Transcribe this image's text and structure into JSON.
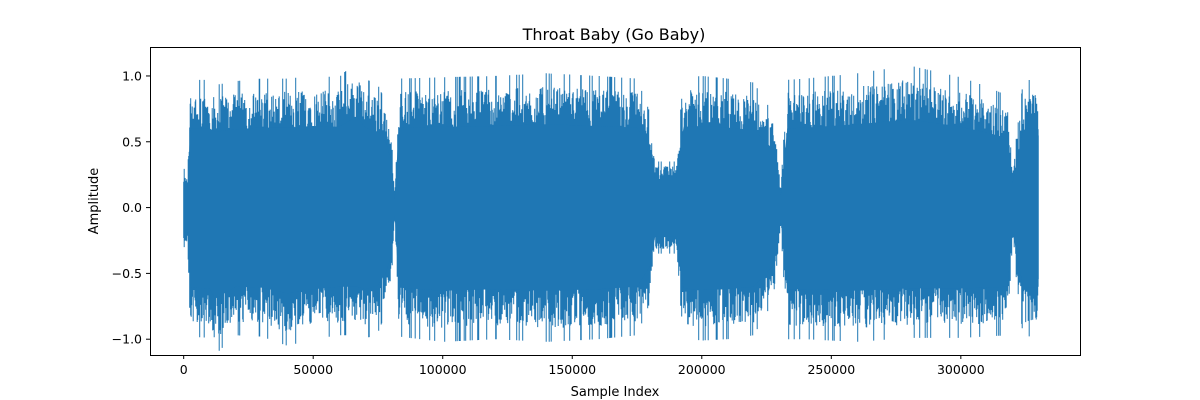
{
  "chart_data": {
    "type": "line",
    "title": "Throat Baby (Go Baby)",
    "xlabel": "Sample Index",
    "ylabel": "Amplitude",
    "xlim": [
      -13000,
      346000
    ],
    "ylim": [
      -1.12,
      1.22
    ],
    "x_ticks": [
      0,
      50000,
      100000,
      150000,
      200000,
      250000,
      300000
    ],
    "y_ticks": [
      -1.0,
      -0.5,
      0.0,
      0.5,
      1.0
    ],
    "x_tick_labels": [
      "0",
      "50000",
      "100000",
      "150000",
      "200000",
      "250000",
      "300000"
    ],
    "y_tick_labels": [
      "−1.0",
      "−0.5",
      "0.0",
      "0.5",
      "1.0"
    ],
    "grid": false,
    "series": [
      {
        "color": "#1f77b4",
        "envelope": {
          "x": [
            0,
            1500,
            2500,
            10000,
            12000,
            20000,
            30000,
            40000,
            50000,
            60000,
            67000,
            70000,
            75000,
            78000,
            80000,
            81500,
            83000,
            100000,
            120000,
            140000,
            160000,
            175000,
            180000,
            182000,
            190000,
            193000,
            200000,
            210000,
            220000,
            228000,
            230500,
            233000,
            240000,
            260000,
            280000,
            300000,
            310000,
            318000,
            320000,
            324000,
            326000,
            330000
          ],
          "upper": [
            0.3,
            0.25,
            0.97,
            0.97,
            0.93,
            0.96,
            0.98,
            0.98,
            1.0,
            0.99,
            1.12,
            0.98,
            0.93,
            0.8,
            0.6,
            0.1,
            0.98,
            0.99,
            1.0,
            1.02,
            1.0,
            0.98,
            0.72,
            0.35,
            0.35,
            0.99,
            1.0,
            0.98,
            0.95,
            0.7,
            0.15,
            0.97,
            0.98,
            1.02,
            1.08,
            0.99,
            0.92,
            0.85,
            0.3,
            0.95,
            0.97,
            0.96
          ],
          "lower": [
            -0.3,
            -0.3,
            -0.98,
            -0.99,
            -1.12,
            -0.97,
            -0.98,
            -1.05,
            -1.0,
            -0.97,
            -0.97,
            -1.0,
            -0.95,
            -0.8,
            -0.6,
            -0.1,
            -0.98,
            -1.02,
            -1.0,
            -1.02,
            -1.0,
            -0.97,
            -0.72,
            -0.35,
            -0.35,
            -0.99,
            -1.01,
            -1.0,
            -0.97,
            -0.7,
            -0.15,
            -1.0,
            -1.0,
            -1.02,
            -0.99,
            -0.99,
            -0.98,
            -0.97,
            -0.3,
            -0.97,
            -0.98,
            -0.97
          ]
        }
      }
    ]
  }
}
